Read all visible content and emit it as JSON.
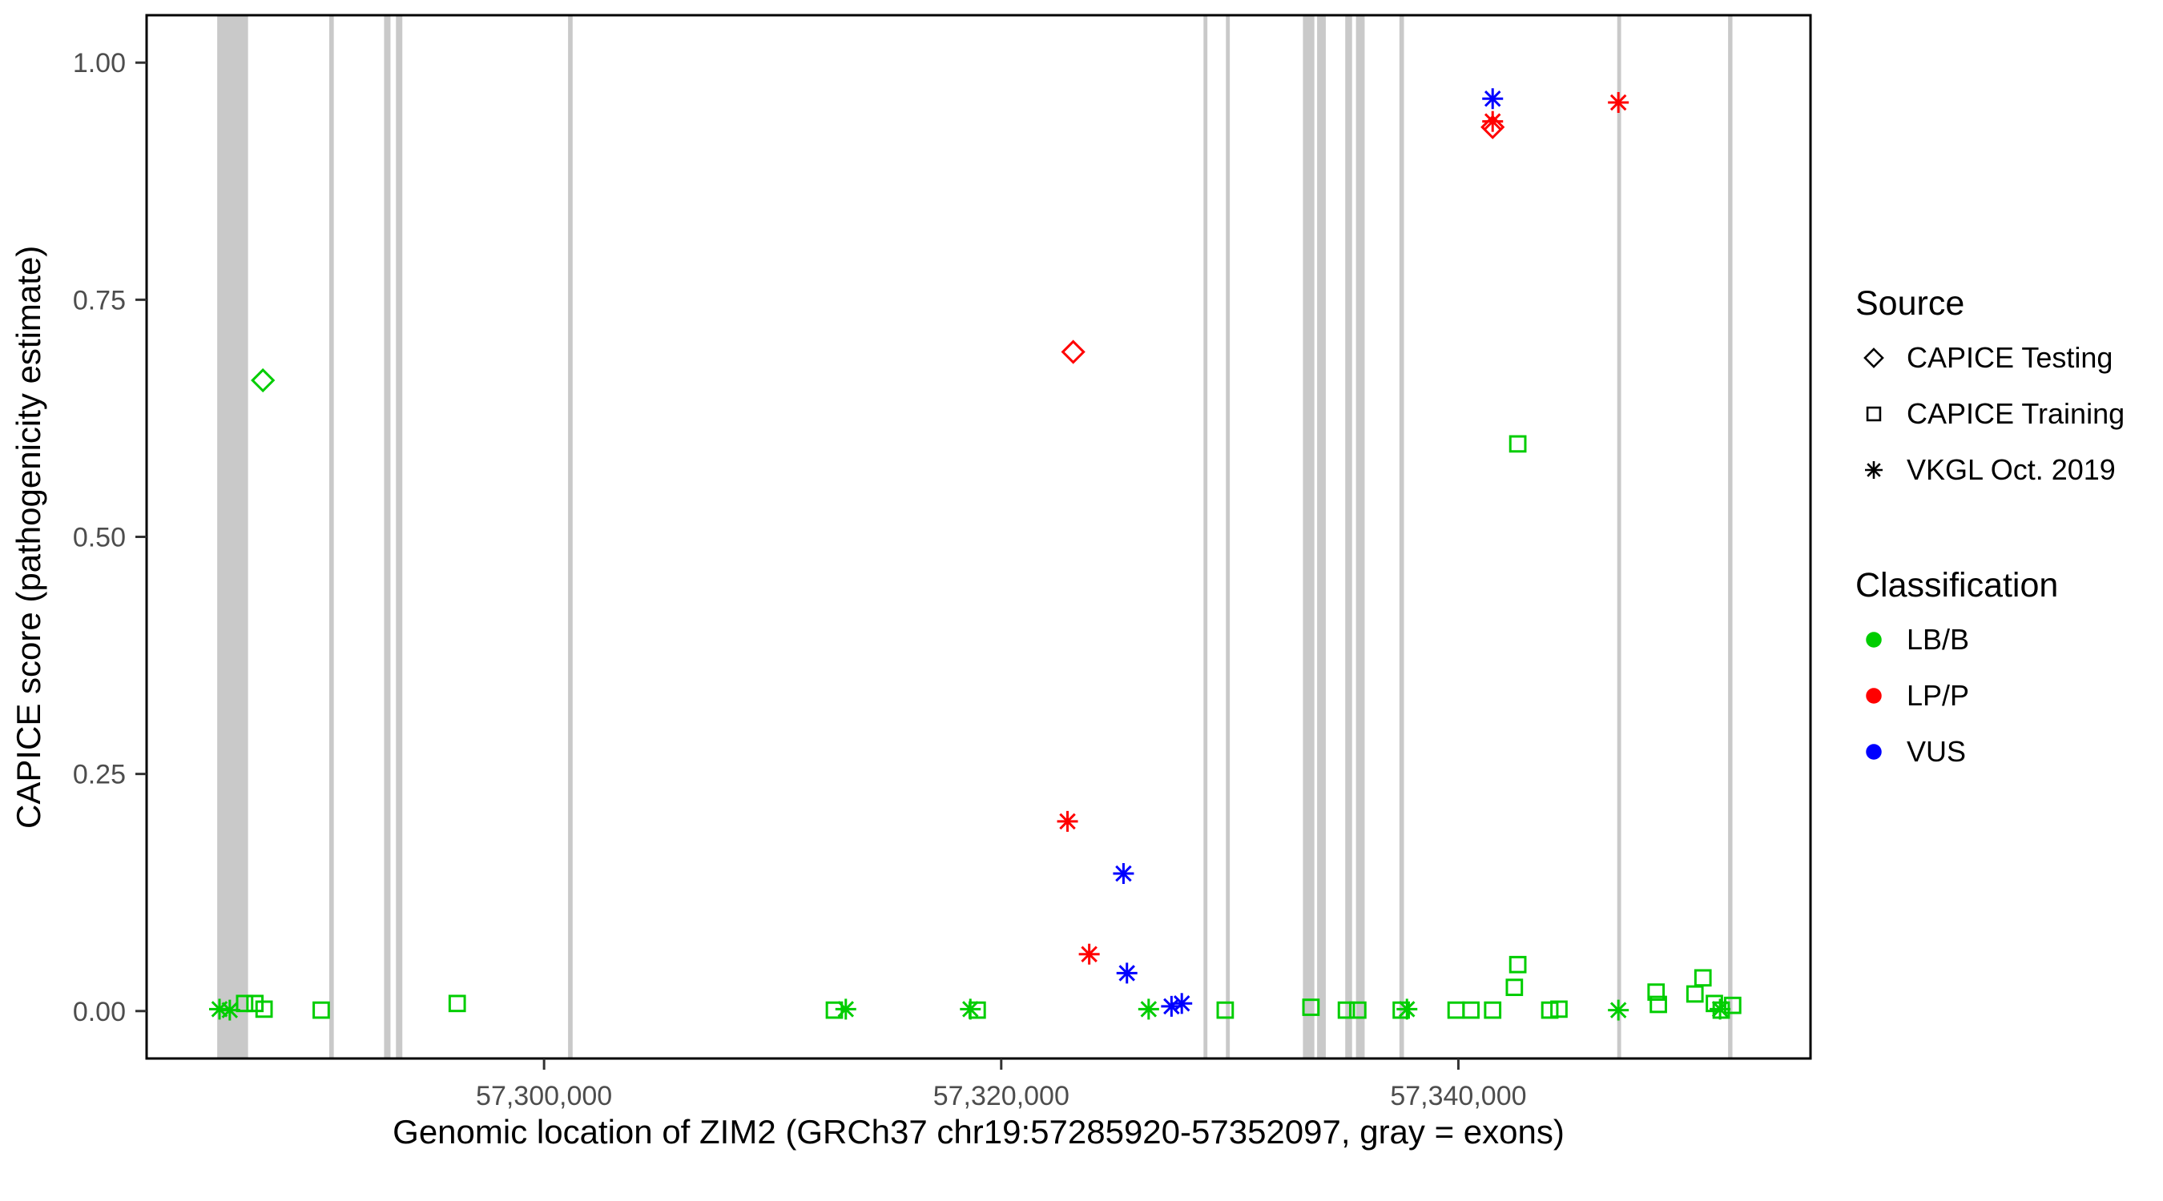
{
  "figure": {
    "background": "#FFFFFF",
    "panel_border_color": "#000000"
  },
  "legend": {
    "source": {
      "title": "Source",
      "items": [
        {
          "label": "CAPICE Testing",
          "shape": "diamond",
          "code": "testing"
        },
        {
          "label": "CAPICE Training",
          "shape": "square",
          "code": "training"
        },
        {
          "label": "VKGL Oct. 2019",
          "shape": "asterisk",
          "code": "vkgl"
        }
      ]
    },
    "classification": {
      "title": "Classification",
      "items": [
        {
          "label": "LB/B",
          "color": "#00CD00"
        },
        {
          "label": "LP/P",
          "color": "#FF0000"
        },
        {
          "label": "VUS",
          "color": "#0000FF"
        }
      ]
    }
  },
  "chart_data": {
    "type": "scatter",
    "title": "",
    "xlabel": "Genomic location of ZIM2 (GRCh37 chr19:57285920-57352097, gray = exons)",
    "ylabel": "CAPICE score (pathogenicity estimate)",
    "xlim": [
      57282611,
      57355406
    ],
    "ylim": [
      -0.05,
      1.05
    ],
    "grid": false,
    "legend_position": "right",
    "x_ticks": [
      {
        "value": 57300000,
        "label": "57,300,000"
      },
      {
        "value": 57320000,
        "label": "57,320,000"
      },
      {
        "value": 57340000,
        "label": "57,340,000"
      }
    ],
    "y_ticks": [
      {
        "value": 0.0,
        "label": "0.00"
      },
      {
        "value": 0.25,
        "label": "0.25"
      },
      {
        "value": 0.5,
        "label": "0.50"
      },
      {
        "value": 0.75,
        "label": "0.75"
      },
      {
        "value": 1.0,
        "label": "1.00"
      }
    ],
    "exon_color": "#C9C9C9",
    "exons": [
      {
        "start": 57285700,
        "end": 57287050
      },
      {
        "start": 57290600,
        "end": 57290800
      },
      {
        "start": 57293000,
        "end": 57293280
      },
      {
        "start": 57293520,
        "end": 57293800
      },
      {
        "start": 57301050,
        "end": 57301250
      },
      {
        "start": 57328850,
        "end": 57329020
      },
      {
        "start": 57329830,
        "end": 57330000
      },
      {
        "start": 57333200,
        "end": 57333700
      },
      {
        "start": 57333820,
        "end": 57334200
      },
      {
        "start": 57335050,
        "end": 57335350
      },
      {
        "start": 57335520,
        "end": 57335900
      },
      {
        "start": 57337420,
        "end": 57337620
      },
      {
        "start": 57346950,
        "end": 57347120
      },
      {
        "start": 57351800,
        "end": 57351990
      }
    ],
    "shapes": {
      "testing": "diamond",
      "training": "square",
      "vkgl": "asterisk"
    },
    "colors": {
      "LB/B": "#00CD00",
      "LP/P": "#FF0000",
      "VUS": "#0000FF"
    },
    "points": [
      {
        "x": 57285800,
        "y": 0.002,
        "source": "vkgl",
        "class": "LB/B"
      },
      {
        "x": 57286250,
        "y": 0.001,
        "source": "vkgl",
        "class": "LB/B"
      },
      {
        "x": 57286900,
        "y": 0.008,
        "source": "training",
        "class": "LB/B"
      },
      {
        "x": 57287350,
        "y": 0.008,
        "source": "training",
        "class": "LB/B"
      },
      {
        "x": 57287700,
        "y": 0.665,
        "source": "testing",
        "class": "LB/B"
      },
      {
        "x": 57287750,
        "y": 0.002,
        "source": "training",
        "class": "LB/B"
      },
      {
        "x": 57290250,
        "y": 0.001,
        "source": "training",
        "class": "LB/B"
      },
      {
        "x": 57296200,
        "y": 0.008,
        "source": "training",
        "class": "LB/B"
      },
      {
        "x": 57312700,
        "y": 0.001,
        "source": "training",
        "class": "LB/B"
      },
      {
        "x": 57313200,
        "y": 0.002,
        "source": "vkgl",
        "class": "LB/B"
      },
      {
        "x": 57318650,
        "y": 0.002,
        "source": "vkgl",
        "class": "LB/B"
      },
      {
        "x": 57318950,
        "y": 0.001,
        "source": "training",
        "class": "LB/B"
      },
      {
        "x": 57322900,
        "y": 0.2,
        "source": "vkgl",
        "class": "LP/P"
      },
      {
        "x": 57323150,
        "y": 0.695,
        "source": "testing",
        "class": "LP/P"
      },
      {
        "x": 57323850,
        "y": 0.06,
        "source": "vkgl",
        "class": "LP/P"
      },
      {
        "x": 57325350,
        "y": 0.145,
        "source": "vkgl",
        "class": "VUS"
      },
      {
        "x": 57325500,
        "y": 0.04,
        "source": "vkgl",
        "class": "VUS"
      },
      {
        "x": 57326450,
        "y": 0.002,
        "source": "vkgl",
        "class": "LB/B"
      },
      {
        "x": 57327450,
        "y": 0.005,
        "source": "vkgl",
        "class": "VUS"
      },
      {
        "x": 57327900,
        "y": 0.008,
        "source": "vkgl",
        "class": "VUS"
      },
      {
        "x": 57329800,
        "y": 0.001,
        "source": "training",
        "class": "LB/B"
      },
      {
        "x": 57333550,
        "y": 0.004,
        "source": "training",
        "class": "LB/B"
      },
      {
        "x": 57335100,
        "y": 0.001,
        "source": "training",
        "class": "LB/B"
      },
      {
        "x": 57335600,
        "y": 0.001,
        "source": "training",
        "class": "LB/B"
      },
      {
        "x": 57337500,
        "y": 0.001,
        "source": "training",
        "class": "LB/B"
      },
      {
        "x": 57337750,
        "y": 0.002,
        "source": "vkgl",
        "class": "LB/B"
      },
      {
        "x": 57339900,
        "y": 0.001,
        "source": "training",
        "class": "LB/B"
      },
      {
        "x": 57340550,
        "y": 0.001,
        "source": "training",
        "class": "LB/B"
      },
      {
        "x": 57341500,
        "y": 0.932,
        "source": "testing",
        "class": "LP/P"
      },
      {
        "x": 57341500,
        "y": 0.938,
        "source": "vkgl",
        "class": "LP/P"
      },
      {
        "x": 57341500,
        "y": 0.962,
        "source": "vkgl",
        "class": "VUS"
      },
      {
        "x": 57341500,
        "y": 0.001,
        "source": "training",
        "class": "LB/B"
      },
      {
        "x": 57342450,
        "y": 0.025,
        "source": "training",
        "class": "LB/B"
      },
      {
        "x": 57342600,
        "y": 0.598,
        "source": "training",
        "class": "LB/B"
      },
      {
        "x": 57342600,
        "y": 0.049,
        "source": "training",
        "class": "LB/B"
      },
      {
        "x": 57344000,
        "y": 0.001,
        "source": "training",
        "class": "LB/B"
      },
      {
        "x": 57344400,
        "y": 0.002,
        "source": "training",
        "class": "LB/B"
      },
      {
        "x": 57347000,
        "y": 0.958,
        "source": "vkgl",
        "class": "LP/P"
      },
      {
        "x": 57347000,
        "y": 0.001,
        "source": "vkgl",
        "class": "LB/B"
      },
      {
        "x": 57348650,
        "y": 0.02,
        "source": "training",
        "class": "LB/B"
      },
      {
        "x": 57348750,
        "y": 0.007,
        "source": "training",
        "class": "LB/B"
      },
      {
        "x": 57350350,
        "y": 0.018,
        "source": "training",
        "class": "LB/B"
      },
      {
        "x": 57350700,
        "y": 0.035,
        "source": "training",
        "class": "LB/B"
      },
      {
        "x": 57351200,
        "y": 0.008,
        "source": "training",
        "class": "LB/B"
      },
      {
        "x": 57351450,
        "y": 0.002,
        "source": "vkgl",
        "class": "LB/B"
      },
      {
        "x": 57351500,
        "y": 0.001,
        "source": "training",
        "class": "LB/B"
      },
      {
        "x": 57352000,
        "y": 0.006,
        "source": "training",
        "class": "LB/B"
      }
    ]
  }
}
